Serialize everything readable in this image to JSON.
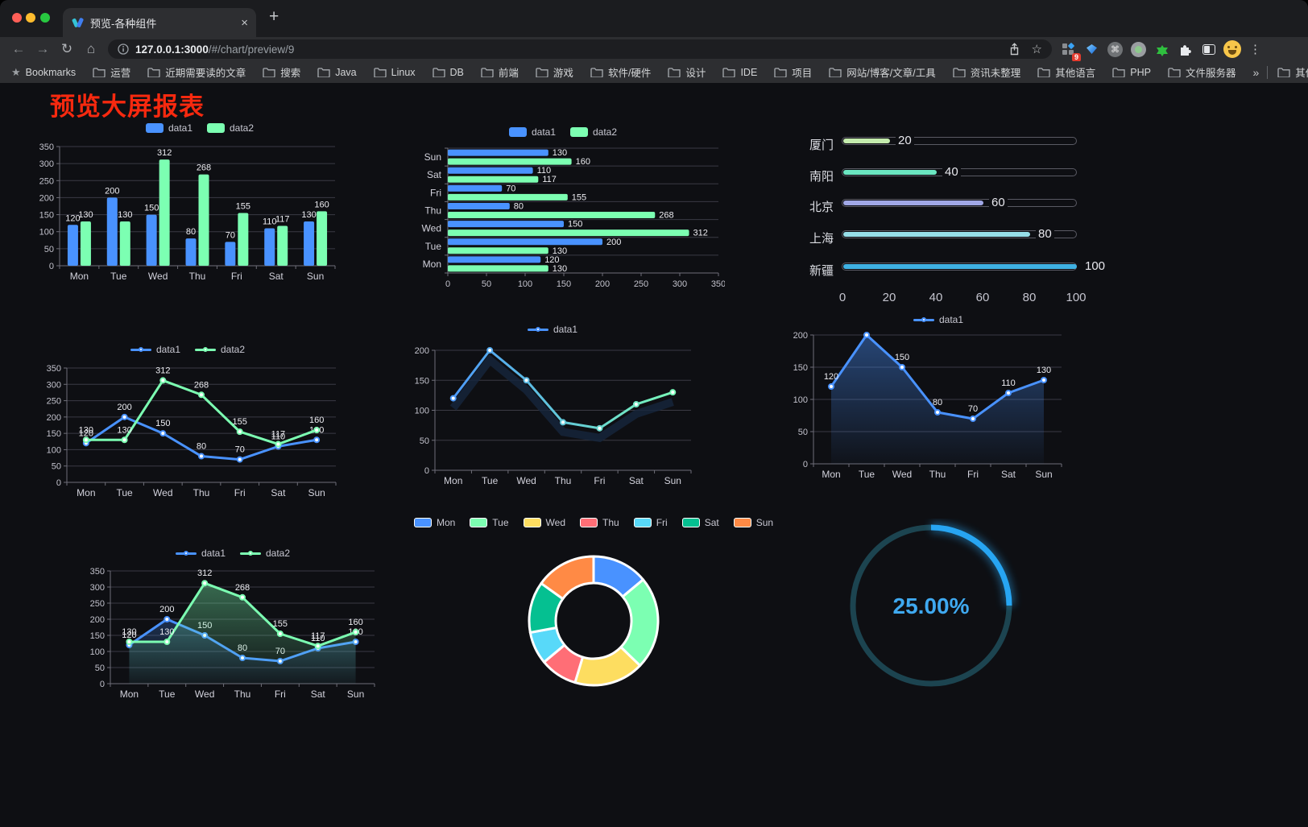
{
  "browser": {
    "tab": {
      "title": "预览-各种组件"
    },
    "url_host": "127.0.0.1:3000",
    "url_path": "/#/chart/preview/9",
    "extension_badge": "9",
    "bookmarks_label": "Bookmarks",
    "bookmark_folders": [
      "运营",
      "近期需要读的文章",
      "搜索",
      "Java",
      "Linux",
      "DB",
      "前端",
      "游戏",
      "软件/硬件",
      "设计",
      "IDE",
      "项目",
      "网站/博客/文章/工具",
      "资讯未整理",
      "其他语言",
      "PHP",
      "文件服务器"
    ],
    "other_bookmarks": "其他书签",
    "icons": {
      "back": "←",
      "forward": "→",
      "reload": "↻",
      "home": "⌂",
      "bookmark_star": "☆",
      "bookmarks_bar_star": "★",
      "kebab": "⋮",
      "close_tab": "×",
      "new_tab": "+",
      "overflow_chevron": "»",
      "cmd": "⌘"
    }
  },
  "page": {
    "title": "预览大屏报表",
    "title_color": "#f7290f"
  },
  "palette": {
    "data1": "#4992ff",
    "data2": "#7cffb2"
  },
  "chart_data": [
    {
      "id": "bar-vertical",
      "type": "bar",
      "categories": [
        "Mon",
        "Tue",
        "Wed",
        "Thu",
        "Fri",
        "Sat",
        "Sun"
      ],
      "series": [
        {
          "name": "data1",
          "color": "#4992ff",
          "values": [
            120,
            200,
            150,
            80,
            70,
            110,
            130
          ]
        },
        {
          "name": "data2",
          "color": "#7cffb2",
          "values": [
            130,
            130,
            312,
            268,
            155,
            117,
            160
          ]
        }
      ],
      "ylim": [
        0,
        350
      ],
      "ytick": 50,
      "labels": true,
      "grid": true,
      "legend_position": "top"
    },
    {
      "id": "bar-horizontal",
      "type": "bar-horizontal",
      "categories": [
        "Mon",
        "Tue",
        "Wed",
        "Thu",
        "Fri",
        "Sat",
        "Sun"
      ],
      "display_order_top_to_bottom": [
        "Sun",
        "Sat",
        "Fri",
        "Thu",
        "Wed",
        "Tue",
        "Mon"
      ],
      "series": [
        {
          "name": "data1",
          "color": "#4992ff",
          "values": [
            120,
            200,
            150,
            80,
            70,
            110,
            130
          ]
        },
        {
          "name": "data2",
          "color": "#7cffb2",
          "values": [
            130,
            130,
            312,
            268,
            155,
            117,
            160
          ]
        }
      ],
      "xlim": [
        0,
        350
      ],
      "xtick": 50,
      "labels": true,
      "legend_position": "top"
    },
    {
      "id": "progress",
      "type": "progress-bars",
      "max": 100,
      "xticks": [
        0,
        20,
        40,
        60,
        80,
        100
      ],
      "items": [
        {
          "label": "厦门",
          "value": 20,
          "color": "#c4ebad"
        },
        {
          "label": "南阳",
          "value": 40,
          "color": "#6be6c1"
        },
        {
          "label": "北京",
          "value": 60,
          "color": "#a0a7e6"
        },
        {
          "label": "上海",
          "value": 80,
          "color": "#96dee8"
        },
        {
          "label": "新疆",
          "value": 100,
          "color": "#3fb1e3"
        }
      ]
    },
    {
      "id": "line-multi",
      "type": "line",
      "categories": [
        "Mon",
        "Tue",
        "Wed",
        "Thu",
        "Fri",
        "Sat",
        "Sun"
      ],
      "series": [
        {
          "name": "data1",
          "color": "#4992ff",
          "values": [
            120,
            200,
            150,
            80,
            70,
            110,
            130
          ]
        },
        {
          "name": "data2",
          "color": "#7cffb2",
          "values": [
            130,
            130,
            312,
            268,
            155,
            117,
            160
          ]
        }
      ],
      "ylim": [
        0,
        350
      ],
      "ytick": 50,
      "labels": true
    },
    {
      "id": "line-gradient",
      "type": "line",
      "categories": [
        "Mon",
        "Tue",
        "Wed",
        "Thu",
        "Fri",
        "Sat",
        "Sun"
      ],
      "series": [
        {
          "name": "data1",
          "color": "#4992ff",
          "gradient": [
            "#4992ff",
            "#7cffb2"
          ],
          "values": [
            120,
            200,
            150,
            80,
            70,
            110,
            130
          ]
        }
      ],
      "ylim": [
        0,
        200
      ],
      "ytick": 50,
      "labels": false,
      "shadow": true
    },
    {
      "id": "area-single",
      "type": "area",
      "categories": [
        "Mon",
        "Tue",
        "Wed",
        "Thu",
        "Fri",
        "Sat",
        "Sun"
      ],
      "series": [
        {
          "name": "data1",
          "color": "#4992ff",
          "area": true,
          "values": [
            120,
            200,
            150,
            80,
            70,
            110,
            130
          ]
        }
      ],
      "ylim": [
        0,
        200
      ],
      "ytick": 50,
      "labels": true
    },
    {
      "id": "line-area-multi",
      "type": "line",
      "categories": [
        "Mon",
        "Tue",
        "Wed",
        "Thu",
        "Fri",
        "Sat",
        "Sun"
      ],
      "series": [
        {
          "name": "data1",
          "color": "#4992ff",
          "area": true,
          "values": [
            120,
            200,
            150,
            80,
            70,
            110,
            130
          ]
        },
        {
          "name": "data2",
          "color": "#7cffb2",
          "area": true,
          "values": [
            130,
            130,
            312,
            268,
            155,
            117,
            160
          ]
        }
      ],
      "ylim": [
        0,
        350
      ],
      "ytick": 50,
      "labels": true
    },
    {
      "id": "donut",
      "type": "pie",
      "items": [
        {
          "label": "Mon",
          "value": 120,
          "color": "#4992ff"
        },
        {
          "label": "Tue",
          "value": 200,
          "color": "#7cffb2"
        },
        {
          "label": "Wed",
          "value": 150,
          "color": "#fddd60"
        },
        {
          "label": "Thu",
          "value": 80,
          "color": "#ff6e76"
        },
        {
          "label": "Fri",
          "value": 70,
          "color": "#58d9f9"
        },
        {
          "label": "Sat",
          "value": 110,
          "color": "#05c091"
        },
        {
          "label": "Sun",
          "value": 130,
          "color": "#ff8a45"
        }
      ],
      "legend_position": "top"
    },
    {
      "id": "gauge",
      "type": "gauge",
      "value": 25,
      "label": "25.00%",
      "color": "#27a5f2",
      "track": "#1c4450",
      "text_color": "#3fa9f0"
    }
  ]
}
